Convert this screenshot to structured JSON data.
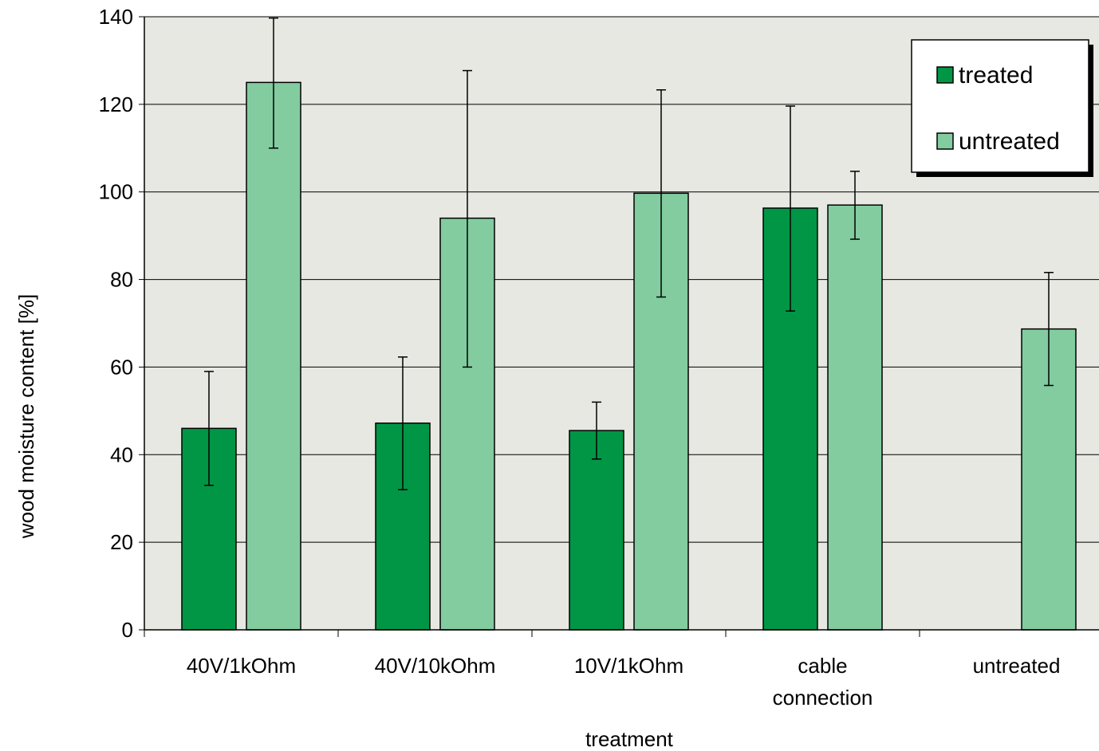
{
  "chart_data": {
    "type": "bar",
    "title": "",
    "xlabel": "treatment",
    "ylabel": "wood moisture content [%]",
    "ylim": [
      0,
      140
    ],
    "yticks": [
      0,
      20,
      40,
      60,
      80,
      100,
      120,
      140
    ],
    "grid": true,
    "legend_position": "top-right",
    "categories": [
      [
        "40V/1kOhm"
      ],
      [
        "40V/10kOhm"
      ],
      [
        "10V/1kOhm"
      ],
      [
        "cable",
        "connection"
      ],
      [
        "untreated"
      ]
    ],
    "series": [
      {
        "name": "treated",
        "color": "#009645",
        "values": [
          46,
          47.2,
          45.5,
          96.3,
          null
        ],
        "error_low": [
          33,
          32,
          39,
          72.8,
          null
        ],
        "error_high": [
          59,
          62.3,
          52,
          119.6,
          null
        ]
      },
      {
        "name": "untreated",
        "color": "#82CCA0",
        "values": [
          125,
          94,
          99.7,
          97,
          68.7
        ],
        "error_low": [
          110,
          60,
          76,
          89.2,
          55.8
        ],
        "error_high": [
          139.7,
          127.7,
          123.3,
          104.7,
          81.6
        ]
      }
    ],
    "plot_background": "#E6E8E1"
  }
}
